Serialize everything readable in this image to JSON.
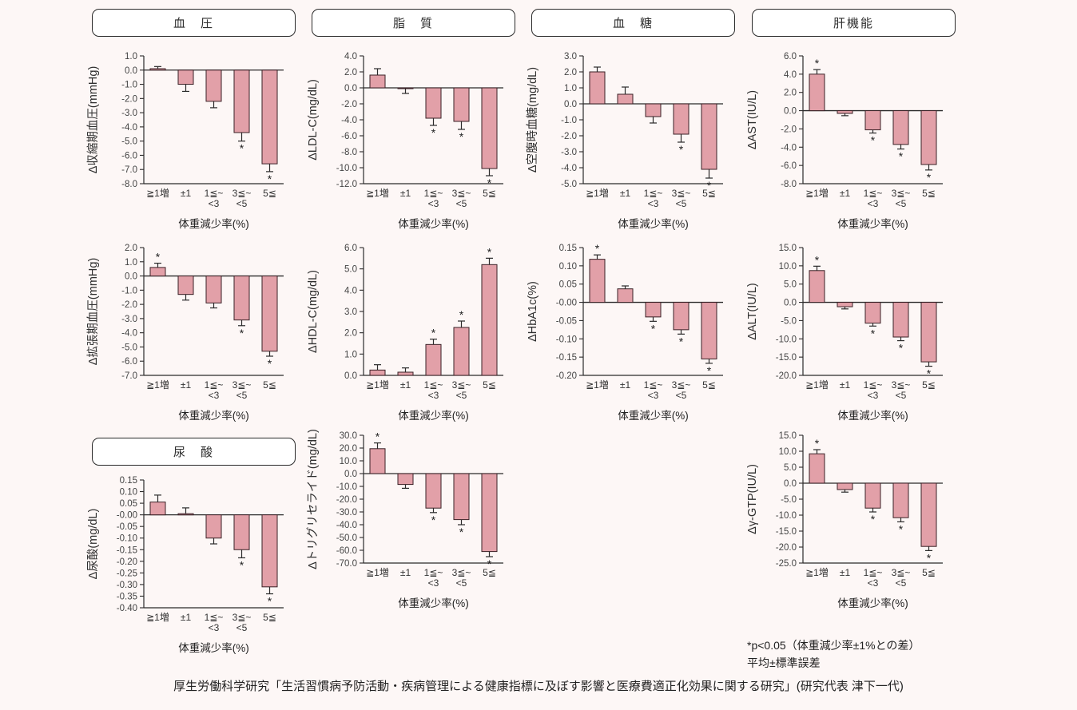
{
  "figure": {
    "background_color": "#fdf7f6",
    "bar_fill": "#e2a0a8",
    "bar_stroke": "#3b2227",
    "axis_color": "#2b2b2b",
    "panel_titles": {
      "blood_pressure": "血　圧",
      "lipid": "脂　質",
      "blood_glucose": "血　糖",
      "liver": "肝機能",
      "uric_acid": "尿　酸"
    },
    "footnote_line1": "*p<0.05（体重減少率±1%との差）",
    "footnote_line2": "平均±標準誤差",
    "caption": "厚生労働科学研究「生活習慣病予防活動・疾病管理による健康指標に及ぼす影響と医療費適正化効果に関する研究」(研究代表 津下一代)"
  },
  "shared": {
    "xlabel": "体重減少率(%)",
    "categories": [
      "≧1増",
      "±1",
      "1≦~<3",
      "3≦~<5",
      "5≦"
    ],
    "categories_lines": [
      [
        "≧1増"
      ],
      [
        "±1"
      ],
      [
        "1≦~",
        "<3"
      ],
      [
        "3≦~",
        "<5"
      ],
      [
        "5≦"
      ]
    ]
  },
  "chart_data": [
    {
      "type": "bar",
      "panel": "血圧",
      "ylabel": "Δ収縮期血圧(mmHg)",
      "ylim": [
        -8,
        1
      ],
      "ytick_step": 1,
      "decimals": 1,
      "values": [
        0.1,
        -1.0,
        -2.2,
        -4.4,
        -6.6
      ],
      "errors": [
        0.15,
        0.5,
        0.45,
        0.6,
        0.55
      ],
      "significant": [
        false,
        false,
        false,
        true,
        true
      ]
    },
    {
      "type": "bar",
      "panel": "脂質",
      "ylabel": "ΔLDL-C(mg/dL)",
      "ylim": [
        -12,
        4
      ],
      "ytick_step": 2,
      "decimals": 1,
      "values": [
        1.6,
        -0.1,
        -3.8,
        -4.2,
        -10.1
      ],
      "errors": [
        0.8,
        0.6,
        0.9,
        1.0,
        0.9
      ],
      "significant": [
        false,
        false,
        true,
        true,
        true
      ]
    },
    {
      "type": "bar",
      "panel": "血糖",
      "ylabel": "Δ空腹時血糖(mg/dL)",
      "ylim": [
        -5,
        3
      ],
      "ytick_step": 1,
      "decimals": 1,
      "values": [
        2.0,
        0.6,
        -0.8,
        -1.9,
        -4.1
      ],
      "errors": [
        0.3,
        0.45,
        0.4,
        0.5,
        0.55
      ],
      "significant": [
        false,
        false,
        false,
        true,
        true
      ]
    },
    {
      "type": "bar",
      "panel": "肝機能",
      "ylabel": "ΔAST(IU/L)",
      "ylim": [
        -8,
        6
      ],
      "ytick_step": 2,
      "decimals": 1,
      "values": [
        4.0,
        -0.3,
        -2.1,
        -3.7,
        -5.9
      ],
      "errors": [
        0.5,
        0.25,
        0.35,
        0.5,
        0.6
      ],
      "significant": [
        true,
        false,
        true,
        true,
        true
      ]
    },
    {
      "type": "bar",
      "panel": "血圧",
      "ylabel": "Δ拡張期血圧(mmHg)",
      "ylim": [
        -7,
        2
      ],
      "ytick_step": 1,
      "decimals": 1,
      "values": [
        0.6,
        -1.3,
        -1.9,
        -3.1,
        -5.3
      ],
      "errors": [
        0.3,
        0.4,
        0.35,
        0.4,
        0.35
      ],
      "significant": [
        true,
        false,
        false,
        true,
        true
      ]
    },
    {
      "type": "bar",
      "panel": "脂質",
      "ylabel": "ΔHDL-C(mg/dL)",
      "ylim": [
        0,
        6
      ],
      "ytick_step": 1,
      "decimals": 1,
      "values": [
        0.25,
        0.15,
        1.45,
        2.25,
        5.2
      ],
      "errors": [
        0.25,
        0.2,
        0.25,
        0.3,
        0.3
      ],
      "significant": [
        false,
        false,
        true,
        true,
        true
      ]
    },
    {
      "type": "bar",
      "panel": "血糖",
      "ylabel": "ΔHbA1c(%)",
      "ylim": [
        -0.2,
        0.15
      ],
      "ytick_step": 0.05,
      "decimals": 2,
      "values": [
        0.118,
        0.037,
        -0.04,
        -0.075,
        -0.155
      ],
      "errors": [
        0.012,
        0.008,
        0.012,
        0.012,
        0.012
      ],
      "significant": [
        true,
        false,
        true,
        true,
        true
      ]
    },
    {
      "type": "bar",
      "panel": "肝機能",
      "ylabel": "ΔALT(IU/L)",
      "ylim": [
        -20,
        15
      ],
      "ytick_step": 5,
      "decimals": 1,
      "values": [
        8.7,
        -1.2,
        -5.7,
        -9.5,
        -16.3
      ],
      "errors": [
        1.2,
        0.6,
        0.8,
        1.0,
        1.2
      ],
      "significant": [
        true,
        false,
        true,
        true,
        true
      ]
    },
    {
      "type": "bar",
      "panel": "尿酸",
      "ylabel": "Δ尿酸(mg/dL)",
      "ylim": [
        -0.4,
        0.15
      ],
      "ytick_step": 0.05,
      "decimals": 2,
      "values": [
        0.055,
        0.005,
        -0.1,
        -0.15,
        -0.31
      ],
      "errors": [
        0.03,
        0.025,
        0.025,
        0.035,
        0.03
      ],
      "significant": [
        false,
        false,
        false,
        true,
        true
      ]
    },
    {
      "type": "bar",
      "panel": "脂質",
      "ylabel": "Δトリグリセライド(mg/dL)",
      "ylim": [
        -70,
        30
      ],
      "ytick_step": 10,
      "decimals": 1,
      "values": [
        19.5,
        -8.5,
        -27,
        -36,
        -61
      ],
      "errors": [
        4.5,
        3.0,
        3.5,
        4.0,
        4.0
      ],
      "significant": [
        true,
        false,
        true,
        true,
        true
      ]
    },
    {
      "type": "bar",
      "panel": "肝機能",
      "ylabel": "Δγ-GTP(IU/L)",
      "ylim": [
        -25,
        15
      ],
      "ytick_step": 5,
      "decimals": 1,
      "values": [
        9.2,
        -2.0,
        -7.8,
        -10.8,
        -19.8
      ],
      "errors": [
        1.3,
        0.8,
        1.2,
        1.3,
        1.3
      ],
      "significant": [
        true,
        false,
        true,
        true,
        true
      ]
    }
  ]
}
